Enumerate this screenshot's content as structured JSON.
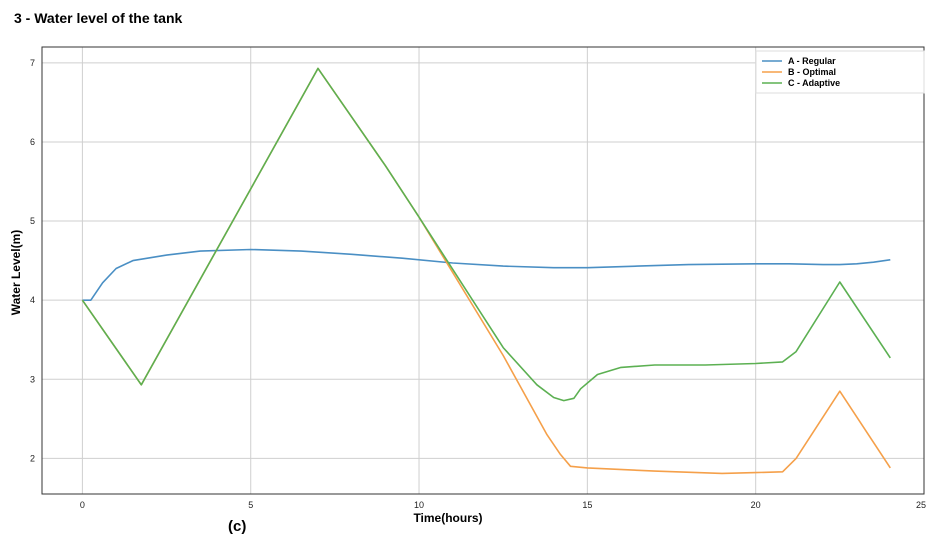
{
  "figure": {
    "title": "3 - Water level of the tank",
    "caption": "(c)"
  },
  "chart_data": {
    "type": "line",
    "xlabel": "Time(hours)",
    "ylabel": "Water Level(m)",
    "xlim": [
      -1.2,
      25
    ],
    "ylim": [
      1.55,
      7.2
    ],
    "xticks": [
      0,
      5,
      10,
      15,
      20,
      25
    ],
    "xtick_labels": [
      "0",
      "5",
      "10",
      "15",
      "20",
      "25"
    ],
    "yticks": [
      2,
      3,
      4,
      5,
      6,
      7
    ],
    "ytick_labels": [
      "2",
      "3",
      "4",
      "5",
      "6",
      "7"
    ],
    "grid": true,
    "legend_position": "top-right",
    "series": [
      {
        "name": "A - Regular",
        "color": "#4a8fc4",
        "points": [
          [
            0,
            4.0
          ],
          [
            0.25,
            4.0
          ],
          [
            0.6,
            4.22
          ],
          [
            1.0,
            4.4
          ],
          [
            1.5,
            4.5
          ],
          [
            2.5,
            4.57
          ],
          [
            3.5,
            4.62
          ],
          [
            5.0,
            4.64
          ],
          [
            6.5,
            4.62
          ],
          [
            8.0,
            4.58
          ],
          [
            9.5,
            4.53
          ],
          [
            11.0,
            4.47
          ],
          [
            12.5,
            4.43
          ],
          [
            14.0,
            4.41
          ],
          [
            15.0,
            4.41
          ],
          [
            16.5,
            4.43
          ],
          [
            18.0,
            4.45
          ],
          [
            20.0,
            4.46
          ],
          [
            21.0,
            4.46
          ],
          [
            22.0,
            4.45
          ],
          [
            22.5,
            4.45
          ],
          [
            23.0,
            4.46
          ],
          [
            23.5,
            4.48
          ],
          [
            24.0,
            4.51
          ]
        ]
      },
      {
        "name": "B - Optimal",
        "color": "#f5a04a",
        "points": [
          [
            0,
            4.0
          ],
          [
            1.75,
            2.93
          ],
          [
            7.0,
            6.93
          ],
          [
            9.0,
            5.7
          ],
          [
            10.0,
            5.05
          ],
          [
            12.5,
            3.3
          ],
          [
            13.8,
            2.3
          ],
          [
            14.2,
            2.05
          ],
          [
            14.5,
            1.9
          ],
          [
            15.0,
            1.88
          ],
          [
            17.0,
            1.84
          ],
          [
            19.0,
            1.81
          ],
          [
            20.0,
            1.82
          ],
          [
            20.8,
            1.83
          ],
          [
            21.2,
            2.0
          ],
          [
            22.5,
            2.85
          ],
          [
            24.0,
            1.88
          ]
        ]
      },
      {
        "name": "C - Adaptive",
        "color": "#5cb052",
        "points": [
          [
            0,
            4.0
          ],
          [
            1.75,
            2.93
          ],
          [
            7.0,
            6.93
          ],
          [
            9.0,
            5.7
          ],
          [
            10.0,
            5.05
          ],
          [
            12.5,
            3.4
          ],
          [
            13.5,
            2.93
          ],
          [
            14.0,
            2.77
          ],
          [
            14.3,
            2.73
          ],
          [
            14.6,
            2.76
          ],
          [
            14.8,
            2.88
          ],
          [
            15.3,
            3.06
          ],
          [
            16.0,
            3.15
          ],
          [
            17.0,
            3.18
          ],
          [
            18.5,
            3.18
          ],
          [
            20.0,
            3.2
          ],
          [
            20.8,
            3.22
          ],
          [
            21.2,
            3.35
          ],
          [
            22.5,
            4.23
          ],
          [
            24.0,
            3.27
          ]
        ]
      }
    ]
  }
}
